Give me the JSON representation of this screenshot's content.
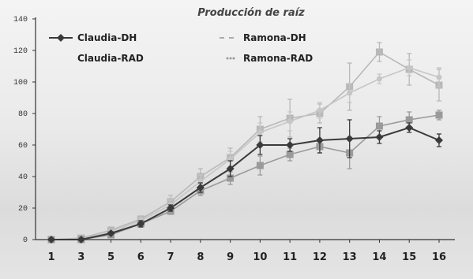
{
  "chart_data": {
    "type": "line",
    "title": "Producción de raíz",
    "xlabel": "",
    "ylabel": "",
    "categories": [
      "1",
      "3",
      "5",
      "6",
      "7",
      "8",
      "9",
      "10",
      "11",
      "12",
      "13",
      "14",
      "15",
      "16"
    ],
    "ylim": [
      0,
      140
    ],
    "yticks": [
      "0",
      "20",
      "40",
      "60",
      "80",
      "100",
      "120",
      "140"
    ],
    "legend_position": "top",
    "series": [
      {
        "name": "Claudia-DH",
        "color": "#3a3a3a",
        "marker": "diamond",
        "values": [
          0,
          0,
          4,
          10,
          20,
          33,
          45,
          60,
          60,
          63,
          64,
          65,
          71,
          63
        ],
        "errors": [
          0,
          0,
          1,
          2,
          2,
          3,
          5,
          6,
          4,
          8,
          12,
          4,
          3,
          4
        ]
      },
      {
        "name": "Ramona-DH",
        "color": "#b8b8b8",
        "marker": "square",
        "values": [
          0,
          1,
          6,
          13,
          24,
          40,
          52,
          70,
          77,
          80,
          97,
          119,
          108,
          98
        ],
        "errors": [
          0,
          0,
          2,
          2,
          4,
          5,
          6,
          8,
          12,
          6,
          15,
          6,
          10,
          10
        ]
      },
      {
        "name": "Claudia-RAD",
        "color": "#9a9a9a",
        "marker": "square",
        "values": [
          0,
          0,
          3,
          10,
          18,
          31,
          39,
          47,
          54,
          59,
          55,
          72,
          76,
          79
        ],
        "errors": [
          0,
          0,
          1,
          2,
          2,
          3,
          4,
          6,
          4,
          4,
          10,
          6,
          5,
          3
        ]
      },
      {
        "name": "Ramona-RAD",
        "color": "#c6c6c6",
        "marker": "circle",
        "values": [
          0,
          0,
          5,
          12,
          22,
          37,
          51,
          68,
          75,
          82,
          93,
          102,
          109,
          103
        ],
        "errors": [
          0,
          0,
          1,
          2,
          3,
          4,
          5,
          6,
          6,
          5,
          6,
          3,
          5,
          6
        ]
      }
    ]
  }
}
